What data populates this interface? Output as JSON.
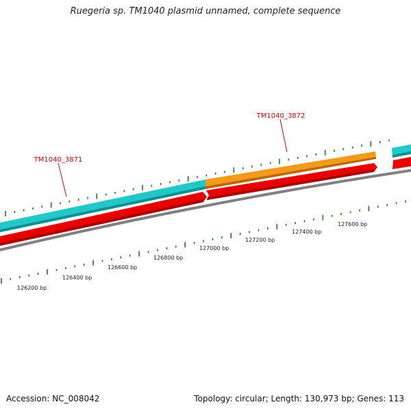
{
  "title": "Ruegeria sp. TM1040 plasmid unnamed, complete sequence",
  "footer": {
    "accession": "Accession: NC_008042",
    "summary": "Topology: circular; Length: 130,973 bp; Genes: 113"
  },
  "colors": {
    "cds_forward": "#22c8c8",
    "cds_forward_alt": "#f08c00",
    "gene": "#e80000",
    "backbone": "#808080",
    "ticks": "#1a7a1a",
    "label": "#d40000"
  },
  "genes": [
    {
      "label": "TM1040_3871"
    },
    {
      "label": "TM1040_3872"
    }
  ],
  "scale_labels": [
    "126200 bp",
    "126400 bp",
    "126600 bp",
    "126800 bp",
    "127000 bp",
    "127200 bp",
    "127400 bp",
    "127600 bp"
  ]
}
